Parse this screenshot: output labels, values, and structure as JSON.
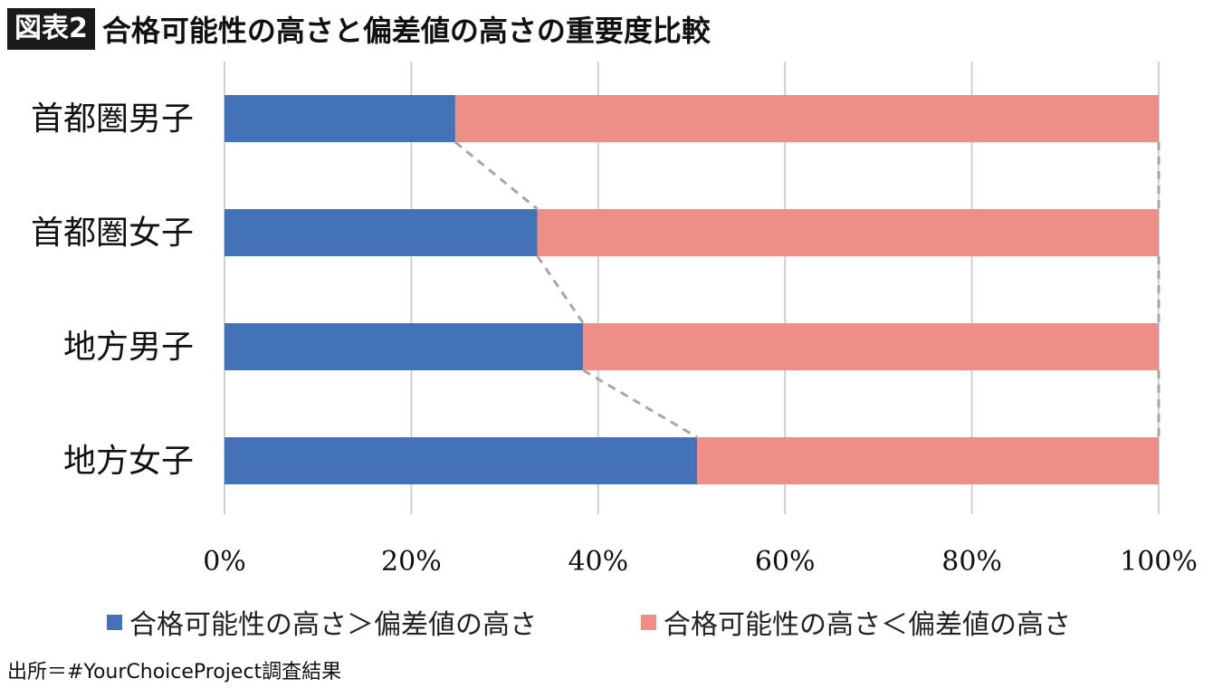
{
  "header": {
    "badge": "図表2",
    "title": "合格可能性の高さと偏差値の高さの重要度比較"
  },
  "chart_data": {
    "type": "bar",
    "orientation": "horizontal",
    "stacked": "percent",
    "title": "合格可能性の高さと偏差値の高さの重要度比較",
    "categories": [
      "首都圏男子",
      "首都圏女子",
      "地方男子",
      "地方女子"
    ],
    "series": [
      {
        "name": "合格可能性の高さ＞偏差値の高さ",
        "values": [
          24.7,
          33.5,
          38.4,
          50.6
        ],
        "color": "#4472b8"
      },
      {
        "name": "合格可能性の高さ＜偏差値の高さ",
        "values": [
          75.3,
          66.5,
          61.6,
          49.4
        ],
        "color": "#ee8f87"
      }
    ],
    "xlim": [
      0,
      100
    ],
    "x_ticks": [
      "0%",
      "20%",
      "40%",
      "60%",
      "80%",
      "100%"
    ],
    "grid": true,
    "series_lines": "dashed",
    "legend_position": "bottom"
  },
  "legend": [
    {
      "label": "合格可能性の高さ＞偏差値の高さ",
      "color": "#4472b8"
    },
    {
      "label": "合格可能性の高さ＜偏差値の高さ",
      "color": "#ee8f87"
    }
  ],
  "source": "出所＝#YourChoiceProject調査結果"
}
